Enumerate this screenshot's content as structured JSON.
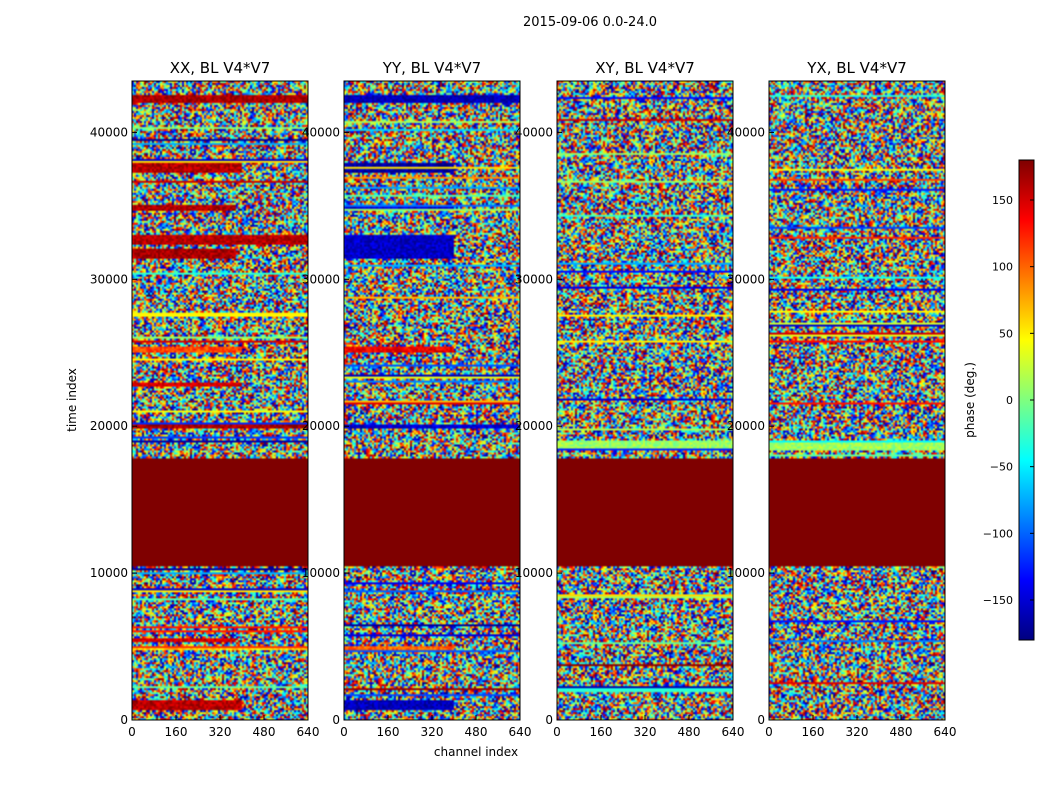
{
  "chart_data": {
    "type": "heatmap",
    "suptitle": "2015-09-06 0.0-24.0",
    "xlabel": "channel index",
    "ylabel": "time index",
    "colorbar_label": "phase (deg.)",
    "colorbar_ticks": [
      150,
      100,
      50,
      0,
      -50,
      -100,
      -150
    ],
    "colorbar_range": [
      -180,
      180
    ],
    "colormap": [
      "#00007f",
      "#0000ff",
      "#0080ff",
      "#00ffff",
      "#7fff7f",
      "#ffff00",
      "#ff8000",
      "#ff0000",
      "#7f0000"
    ],
    "xlim": [
      0,
      640
    ],
    "ylim": [
      0,
      43500
    ],
    "xticks": [
      0,
      160,
      320,
      480,
      640
    ],
    "yticks": [
      0,
      10000,
      20000,
      30000,
      40000
    ],
    "panels": [
      {
        "title": "XX, BL V4*V7",
        "flagged_range": [
          10400,
          17800
        ],
        "flagged_phase": 180,
        "coherent_bands": [
          {
            "t0": 42000,
            "t1": 42500,
            "ch0": 0,
            "ch1": 640,
            "phase": 165
          },
          {
            "t0": 37300,
            "t1": 37900,
            "ch0": 0,
            "ch1": 400,
            "phase": 160
          },
          {
            "t0": 34700,
            "t1": 35100,
            "ch0": 0,
            "ch1": 380,
            "phase": 165
          },
          {
            "t0": 32300,
            "t1": 33000,
            "ch0": 0,
            "ch1": 640,
            "phase": 160
          },
          {
            "t0": 31400,
            "t1": 32100,
            "ch0": 0,
            "ch1": 380,
            "phase": 165
          },
          {
            "t0": 25000,
            "t1": 25400,
            "ch0": 0,
            "ch1": 400,
            "phase": 110
          },
          {
            "t0": 22700,
            "t1": 23000,
            "ch0": 0,
            "ch1": 400,
            "phase": 150
          },
          {
            "t0": 19800,
            "t1": 20100,
            "ch0": 0,
            "ch1": 640,
            "phase": 165
          },
          {
            "t0": 5300,
            "t1": 5600,
            "ch0": 0,
            "ch1": 380,
            "phase": 150
          },
          {
            "t0": 4700,
            "t1": 5000,
            "ch0": 0,
            "ch1": 640,
            "phase": 60
          },
          {
            "t0": 700,
            "t1": 1400,
            "ch0": 0,
            "ch1": 400,
            "phase": 160
          }
        ]
      },
      {
        "title": "YY, BL V4*V7",
        "flagged_range": [
          10400,
          17800
        ],
        "flagged_phase": 180,
        "coherent_bands": [
          {
            "t0": 42000,
            "t1": 42500,
            "ch0": 0,
            "ch1": 640,
            "phase": -160
          },
          {
            "t0": 37300,
            "t1": 37900,
            "ch0": 0,
            "ch1": 400,
            "phase": -170
          },
          {
            "t0": 34700,
            "t1": 35100,
            "ch0": 0,
            "ch1": 400,
            "phase": -150
          },
          {
            "t0": 31400,
            "t1": 33000,
            "ch0": 0,
            "ch1": 400,
            "phase": -155
          },
          {
            "t0": 25000,
            "t1": 25400,
            "ch0": 0,
            "ch1": 400,
            "phase": 140
          },
          {
            "t0": 19800,
            "t1": 20100,
            "ch0": 0,
            "ch1": 640,
            "phase": -150
          },
          {
            "t0": 4700,
            "t1": 5000,
            "ch0": 0,
            "ch1": 400,
            "phase": 100
          },
          {
            "t0": 700,
            "t1": 1400,
            "ch0": 0,
            "ch1": 400,
            "phase": -160
          }
        ]
      },
      {
        "title": "XY, BL V4*V7",
        "flagged_range": [
          10400,
          17800
        ],
        "flagged_phase": 180,
        "coherent_bands": [
          {
            "t0": 18400,
            "t1": 19000,
            "ch0": 0,
            "ch1": 640,
            "phase": 10
          }
        ]
      },
      {
        "title": "YX, BL V4*V7",
        "flagged_range": [
          10400,
          17800
        ],
        "flagged_phase": 180,
        "coherent_bands": [
          {
            "t0": 18400,
            "t1": 19000,
            "ch0": 0,
            "ch1": 640,
            "phase": 10
          }
        ]
      }
    ]
  }
}
